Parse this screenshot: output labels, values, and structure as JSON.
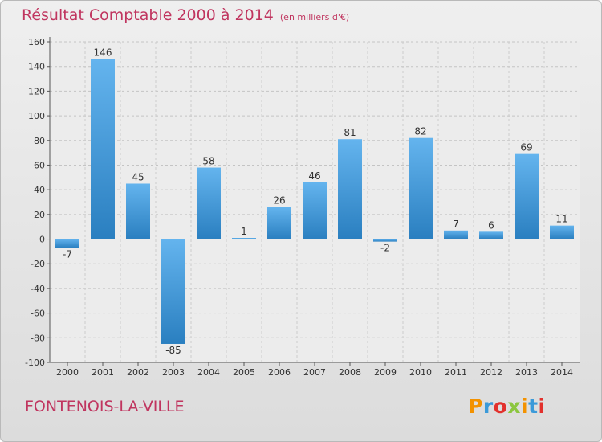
{
  "header": {
    "title": "Résultat Comptable 2000 à 2014",
    "subtitle": "(en milliers d'€)"
  },
  "footer": {
    "commune": "FONTENOIS-LA-VILLE",
    "logo": "Proxiti"
  },
  "colors": {
    "title": "#c0355f",
    "bar_light": "#64b4ee",
    "bar_dark": "#2a7fc0",
    "logo_letters": [
      "#f39200",
      "#3b9ad9",
      "#e2312d",
      "#8cc63f",
      "#f39200",
      "#3b9ad9",
      "#e2312d"
    ]
  },
  "chart_data": {
    "type": "bar",
    "categories": [
      "2000",
      "2001",
      "2002",
      "2003",
      "2004",
      "2005",
      "2006",
      "2007",
      "2008",
      "2009",
      "2010",
      "2011",
      "2012",
      "2013",
      "2014"
    ],
    "values": [
      -7,
      146,
      45,
      -85,
      58,
      1,
      26,
      46,
      81,
      -2,
      82,
      7,
      6,
      69,
      11
    ],
    "value_labels": [
      "-7",
      "146",
      "45",
      "-85",
      "58",
      "1",
      "26",
      "46",
      "81",
      "-2",
      "82",
      "7",
      "6",
      "69",
      "11"
    ],
    "ylim": [
      -100,
      160
    ],
    "yticks": [
      -100,
      -80,
      -60,
      -40,
      -20,
      0,
      20,
      40,
      60,
      80,
      100,
      120,
      140,
      160
    ],
    "ytick_labels": [
      "-100",
      "-80",
      "-60",
      "-40",
      "-20",
      "0",
      "20",
      "40",
      "60",
      "80",
      "100",
      "120",
      "140",
      "160"
    ],
    "grid": true,
    "xlabel": "",
    "ylabel": ""
  }
}
